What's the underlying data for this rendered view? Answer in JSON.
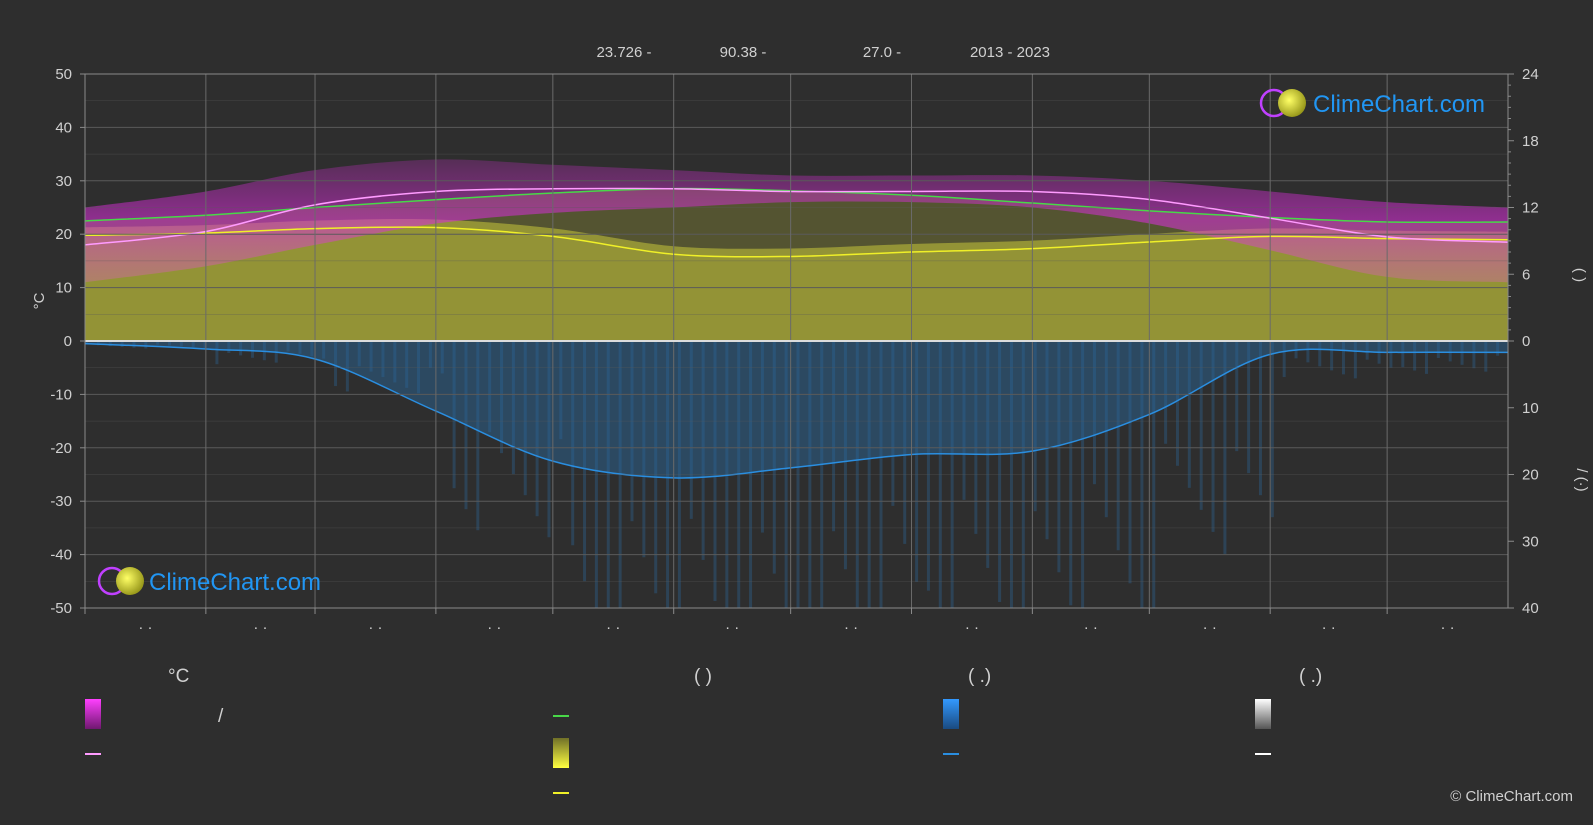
{
  "header": {
    "lat": "23.726 -",
    "lon": "90.38 -",
    "elev": "27.0 -",
    "years": "2013 - 2023"
  },
  "colors": {
    "background": "#2e2e2e",
    "grid": "#5a5a5a",
    "temp_range": "#d22fd2",
    "daylight_fill": "#c8c83a",
    "mean_max": "#ff9bff",
    "daylight_line": "#48d848",
    "sunshine_line": "#f0f028",
    "rain_line": "#2a8ee0",
    "rain_fill": "#2a6aa0"
  },
  "chart_data": {
    "type": "line",
    "left_axis": {
      "label": "°C",
      "ylim": [
        -50,
        50
      ],
      "ticks": [
        "50",
        "40",
        "30",
        "20",
        "10",
        "0",
        "-10",
        "-20",
        "-30",
        "-40",
        "-50"
      ]
    },
    "right_axis_top": {
      "ylim": [
        0,
        24
      ],
      "ticks": [
        "24",
        "18",
        "12",
        "6",
        "0"
      ],
      "label_glyph": "(   )"
    },
    "right_axis_bottom": {
      "ylim": [
        0,
        40
      ],
      "ticks": [
        "0",
        "10",
        "20",
        "30",
        "40"
      ],
      "label_glyph": "/ (·)"
    },
    "month_labels": [
      "· ·",
      "· ·",
      "· ·",
      "· ·",
      "· ·",
      "· ·",
      "· ·",
      "· ·",
      "· ·",
      "· ·",
      "· ·",
      "· ·"
    ],
    "x_days": [
      1,
      32,
      60,
      91,
      121,
      152,
      182,
      213,
      244,
      274,
      305,
      335,
      366
    ],
    "series": [
      {
        "key": "temp_max_mean",
        "y": [
          18.0,
          20.5,
          25.5,
          28.0,
          28.5,
          28.5,
          28.0,
          28.0,
          28.0,
          26.5,
          23.0,
          19.5,
          18.5
        ]
      },
      {
        "key": "daylight_hours",
        "y": [
          10.8,
          11.3,
          12.0,
          12.7,
          13.3,
          13.7,
          13.5,
          13.1,
          12.4,
          11.7,
          11.1,
          10.7,
          10.7
        ]
      },
      {
        "key": "sunshine_hours",
        "y": [
          9.5,
          9.7,
          10.1,
          10.2,
          9.4,
          7.8,
          7.6,
          8.0,
          8.3,
          8.9,
          9.4,
          9.2,
          9.1
        ]
      },
      {
        "key": "precip_mm",
        "y": [
          0.4,
          1.2,
          2.7,
          10.5,
          18.0,
          20.5,
          19.0,
          17.0,
          16.5,
          11.0,
          2.0,
          1.7,
          1.7
        ]
      }
    ],
    "temp_band_top": [
      25,
      28,
      32,
      34,
      33,
      32,
      31,
      31,
      31,
      30,
      28,
      26,
      25
    ],
    "temp_band_bottom": [
      11,
      14,
      18,
      22,
      24,
      25,
      26,
      26,
      25,
      22,
      17,
      12,
      11
    ]
  },
  "legend": {
    "col1_head": "°C",
    "col1_sep": "/",
    "col2_head": "(          )",
    "col3_head": "(   .)",
    "col4_head": "(   .)"
  },
  "logo": {
    "text": "ClimeChart.com"
  },
  "copyright": "© ClimeChart.com"
}
